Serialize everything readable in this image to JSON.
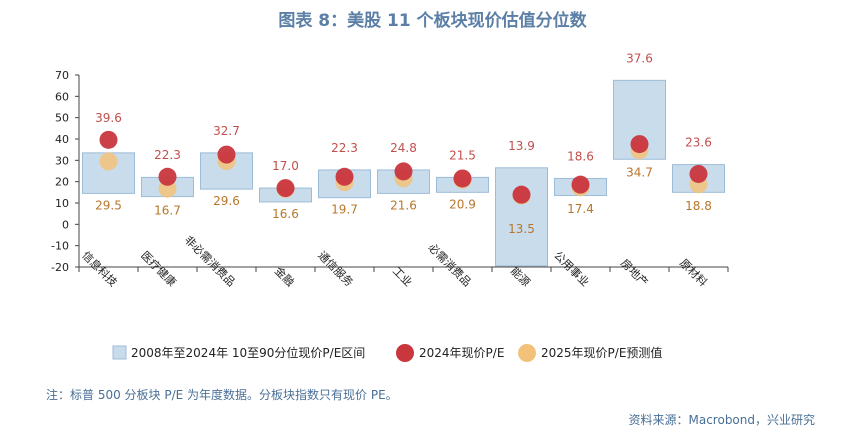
{
  "title": "图表 8：美股 11 个板块现价估值分位数",
  "note": "注：标普 500 分板块 P/E 为年度数据。分板块指数只有现价 PE。",
  "source": "资料来源：Macrobond，兴业研究",
  "colors": {
    "range_fill": "#c9dcec",
    "range_stroke": "#9dbcd8",
    "pe2024": "#c9363e",
    "pe2025": "#f2c27a",
    "label2024": "#c0504d",
    "label2025": "#b8762b"
  },
  "chart_data": {
    "type": "bar",
    "ylim": [
      -20,
      70
    ],
    "yticks": [
      -20,
      -10,
      0,
      10,
      20,
      30,
      40,
      50,
      60,
      70
    ],
    "categories": [
      "信息科技",
      "医疗健康",
      "非必需消费品",
      "金融",
      "通信服务",
      "工业",
      "必需消费品",
      "能源",
      "公用事业",
      "房地产",
      "原材料"
    ],
    "series": [
      {
        "name": "2008年至2024年 10至90分位现价P/E区间",
        "low": [
          14.5,
          13,
          16.5,
          10.5,
          12.5,
          14.5,
          15,
          -19.5,
          13.5,
          30.5,
          15
        ],
        "high": [
          33.5,
          22,
          33.5,
          17,
          25.5,
          25.5,
          22,
          26.5,
          21.5,
          67.5,
          28
        ]
      },
      {
        "name": "2024年现价P/E",
        "values": [
          39.6,
          22.3,
          32.7,
          17.0,
          22.3,
          24.8,
          21.5,
          13.9,
          18.6,
          37.6,
          23.6
        ]
      },
      {
        "name": "2025年现价P/E预测值",
        "values": [
          29.5,
          16.7,
          29.6,
          16.6,
          19.7,
          21.6,
          20.9,
          13.5,
          17.4,
          34.7,
          18.8
        ]
      }
    ],
    "labels_2024": [
      "39.6",
      "22.3",
      "32.7",
      "17.0",
      "22.3",
      "24.8",
      "21.5",
      "13.9",
      "18.6",
      "37.6",
      "23.6"
    ],
    "labels_2025": [
      "29.5",
      "16.7",
      "29.6",
      "16.6",
      "19.7",
      "21.6",
      "20.9",
      "13.5",
      "17.4",
      "34.7",
      "18.8"
    ],
    "legend_position": "bottom"
  }
}
